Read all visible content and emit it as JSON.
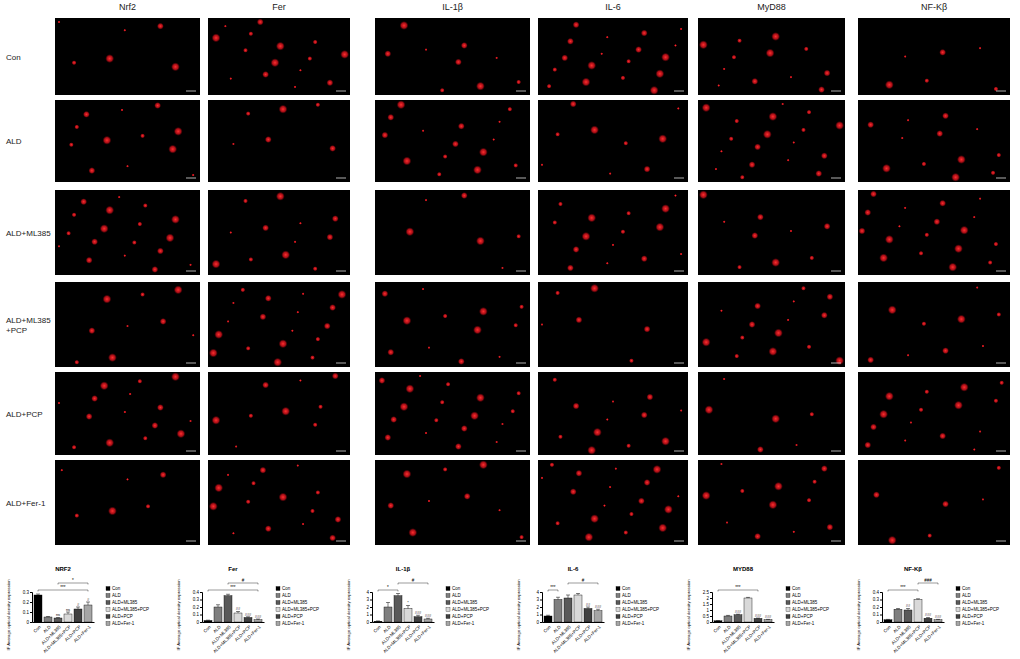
{
  "image_grid": {
    "columns": [
      "Nrf2",
      "Fer",
      "IL-1β",
      "IL-6",
      "MyD88",
      "NF-Kβ"
    ],
    "rows": [
      [
        "Con"
      ],
      [
        "ALD"
      ],
      [
        "ALD+ML385"
      ],
      [
        "ALD+ML385",
        "+PCP"
      ],
      [
        "ALD+PCP"
      ],
      [
        "ALD+Fer-1"
      ]
    ]
  },
  "chart_data": [
    {
      "type": "bar",
      "title": "NRF2",
      "y_label": "IF Average optical density expression",
      "categories": [
        "Con",
        "ALD",
        "ALD+ML385",
        "ALD+ML385+PCP",
        "ALD+PCP",
        "ALD+Fer-1"
      ],
      "values": [
        0.27,
        0.05,
        0.04,
        0.08,
        0.13,
        0.17
      ],
      "errors": [
        0.01,
        0.005,
        0.005,
        0.02,
        0.02,
        0.03
      ],
      "colors": [
        "#000000",
        "#7f7f7f",
        "#595959",
        "#d9d9d9",
        "#404040",
        "#a6a6a6"
      ],
      "ylim": [
        0,
        0.3
      ],
      "yticks": [
        0,
        0.1,
        0.2,
        0.3
      ],
      "legend": "right",
      "annotations": [
        {
          "text": "***",
          "from": "Con",
          "to": "ALD+Fer-1"
        },
        {
          "text": "*",
          "from": "ALD+ML385",
          "to": "ALD+Fer-1"
        },
        {
          "text": "ns",
          "category": "ALD+ML385"
        },
        {
          "text": "ns",
          "category": "ALD+ML385+PCP"
        },
        {
          "text": "#",
          "category": "ALD+PCP"
        },
        {
          "text": "#",
          "category": "ALD+Fer-1"
        }
      ]
    },
    {
      "type": "bar",
      "title": "Fer",
      "y_label": "IF Average optical density expression",
      "categories": [
        "Con",
        "ALD",
        "ALD+ML385",
        "ALD+ML385+PCP",
        "ALD+PCP",
        "ALD+Fer-1"
      ],
      "values": [
        0.02,
        0.2,
        0.35,
        0.12,
        0.06,
        0.03
      ],
      "errors": [
        0.005,
        0.03,
        0.02,
        0.02,
        0.01,
        0.01
      ],
      "colors": [
        "#000000",
        "#7f7f7f",
        "#595959",
        "#d9d9d9",
        "#404040",
        "#a6a6a6"
      ],
      "ylim": [
        0,
        0.4
      ],
      "yticks": [
        0,
        0.1,
        0.2,
        0.3,
        0.4
      ],
      "legend": "right",
      "annotations": [
        {
          "text": "***",
          "from": "Con",
          "to": "ALD+Fer-1"
        },
        {
          "text": "#",
          "from": "ALD+ML385",
          "to": "ALD+Fer-1"
        },
        {
          "text": "##",
          "category": "ALD+ML385+PCP"
        },
        {
          "text": "###",
          "category": "ALD+PCP"
        },
        {
          "text": "###",
          "category": "ALD+Fer-1"
        }
      ]
    },
    {
      "type": "bar",
      "title": "IL-1β",
      "y_label": "IF Average optical density expression",
      "categories": [
        "Con",
        "ALD",
        "ALD+ML385",
        "ALD+ML385+PCP",
        "ALD+PCP",
        "ALD+Fer-1"
      ],
      "values": [
        0.1,
        2.0,
        3.5,
        1.8,
        0.7,
        0.4
      ],
      "errors": [
        0.05,
        0.6,
        0.3,
        0.4,
        0.2,
        0.1
      ],
      "colors": [
        "#000000",
        "#7f7f7f",
        "#595959",
        "#d9d9d9",
        "#404040",
        "#a6a6a6"
      ],
      "ylim": [
        0,
        4
      ],
      "yticks": [
        0,
        1,
        2,
        3,
        4
      ],
      "legend": "right",
      "annotations": [
        {
          "text": "*",
          "from": "Con",
          "to": "ALD+ML385"
        },
        {
          "text": "#",
          "from": "ALD+ML385",
          "to": "ALD+Fer-1"
        },
        {
          "text": "*",
          "category": "ALD+ML385+PCP"
        },
        {
          "text": "###",
          "category": "ALD+PCP"
        },
        {
          "text": "###",
          "category": "ALD+Fer-1"
        }
      ]
    },
    {
      "type": "bar",
      "title": "IL-6",
      "y_label": "IF Average optical density expression",
      "categories": [
        "Con",
        "ALD",
        "ALD+ML385",
        "ALD+ML385+PCP",
        "ALD+PCP",
        "ALD+Fer-1"
      ],
      "values": [
        0.8,
        3.0,
        3.2,
        3.6,
        1.8,
        1.5
      ],
      "errors": [
        0.1,
        0.3,
        0.4,
        0.2,
        0.2,
        0.2
      ],
      "colors": [
        "#000000",
        "#7f7f7f",
        "#595959",
        "#d9d9d9",
        "#404040",
        "#a6a6a6"
      ],
      "ylim": [
        0,
        4
      ],
      "yticks": [
        0,
        1,
        2,
        3,
        4
      ],
      "legend": "right",
      "annotations": [
        {
          "text": "***",
          "from": "Con",
          "to": "ALD"
        },
        {
          "text": "#",
          "from": "ALD+ML385",
          "to": "ALD+Fer-1"
        },
        {
          "text": "##",
          "category": "ALD+PCP"
        },
        {
          "text": "###",
          "category": "ALD+Fer-1"
        }
      ]
    },
    {
      "type": "bar",
      "title": "MYD88",
      "y_label": "IF Average optical density expression",
      "categories": [
        "Con",
        "ALD",
        "ALD+ML385",
        "ALD+ML385+PCP",
        "ALD+PCP",
        "ALD+Fer-1"
      ],
      "values": [
        0.1,
        0.5,
        0.6,
        2.0,
        0.3,
        0.2
      ],
      "errors": [
        0.02,
        0.05,
        0.05,
        0.05,
        0.03,
        0.02
      ],
      "colors": [
        "#000000",
        "#7f7f7f",
        "#595959",
        "#d9d9d9",
        "#404040",
        "#a6a6a6"
      ],
      "ylim": [
        0,
        2.5
      ],
      "yticks": [
        0,
        0.5,
        1,
        1.5,
        2,
        2.5
      ],
      "legend": "right",
      "annotations": [
        {
          "text": "***",
          "from": "Con",
          "to": "ALD+PCP"
        },
        {
          "text": "###",
          "category": "ALD+ML385"
        },
        {
          "text": "###",
          "category": "ALD+PCP"
        },
        {
          "text": "###",
          "category": "ALD+Fer-1"
        }
      ]
    },
    {
      "type": "bar",
      "title": "NF-Kβ",
      "y_label": "IF Average optical density expression",
      "categories": [
        "Con",
        "ALD",
        "ALD+ML385",
        "ALD+ML385+PCP",
        "ALD+PCP",
        "ALD+Fer-1"
      ],
      "values": [
        0.03,
        0.17,
        0.16,
        0.3,
        0.05,
        0.03
      ],
      "errors": [
        0.005,
        0.01,
        0.02,
        0.01,
        0.01,
        0.005
      ],
      "colors": [
        "#000000",
        "#7f7f7f",
        "#595959",
        "#d9d9d9",
        "#404040",
        "#a6a6a6"
      ],
      "ylim": [
        0,
        0.4
      ],
      "yticks": [
        0,
        0.1,
        0.2,
        0.3,
        0.4
      ],
      "legend": "right",
      "annotations": [
        {
          "text": "***",
          "from": "Con",
          "to": "ALD+ML385+PCP"
        },
        {
          "text": "###",
          "from": "ALD+ML385+PCP",
          "to": "ALD+Fer-1"
        },
        {
          "text": "##",
          "category": "ALD+ML385"
        },
        {
          "text": "###",
          "category": "ALD+PCP"
        },
        {
          "text": "###",
          "category": "ALD+Fer-1"
        }
      ]
    }
  ]
}
